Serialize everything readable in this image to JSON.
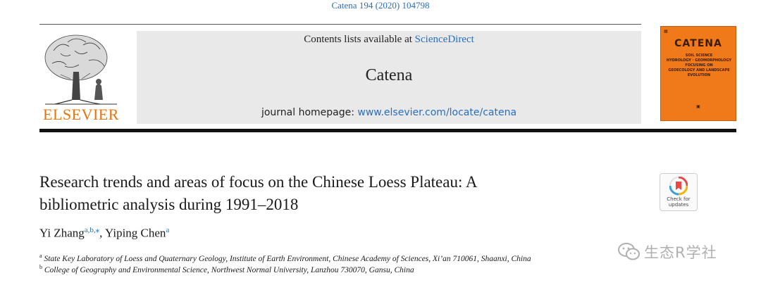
{
  "citation": "Catena 194 (2020) 104798",
  "publisher": {
    "name": "ELSEVIER",
    "color": "#e8730a"
  },
  "banner": {
    "contents_prefix": "Contents lists available at",
    "contents_link": "ScienceDirect",
    "journal_name": "Catena",
    "homepage_prefix": "journal homepage:",
    "homepage_url": "www.elsevier.com/locate/catena"
  },
  "cover": {
    "title": "CATENA",
    "subtitle_lines": [
      "SOIL SCIENCE",
      "HYDROLOGY · GEOMORPHOLOGY",
      "FOCUSING ON",
      "GEOECOLOGY AND LANDSCAPE EVOLUTION"
    ],
    "color": "#f07a1a"
  },
  "paper": {
    "title_line1": "Research trends and areas of focus on the Chinese Loess Plateau: A",
    "title_line2": "bibliometric analysis during 1991–2018"
  },
  "check_updates": {
    "line1": "Check for",
    "line2": "updates",
    "icon": "crossmark-icon"
  },
  "authors": {
    "author1": "Yi Zhang",
    "author1_sup": "a,b,⁎",
    "separator": ", ",
    "author2": "Yiping Chen",
    "author2_sup": "a"
  },
  "affiliations": {
    "a_marker": "a",
    "a_text": "State Key Laboratory of Loess and Quaternary Geology, Institute of Earth Environment, Chinese Academy of Sciences, Xi’an 710061, Shaanxi, China",
    "b_marker": "b",
    "b_text": "College of Geography and Environmental Science, Northwest Normal University, Lanzhou 730070, Gansu, China"
  },
  "watermark": {
    "text": "生态R学社",
    "icon": "wechat-icon"
  }
}
